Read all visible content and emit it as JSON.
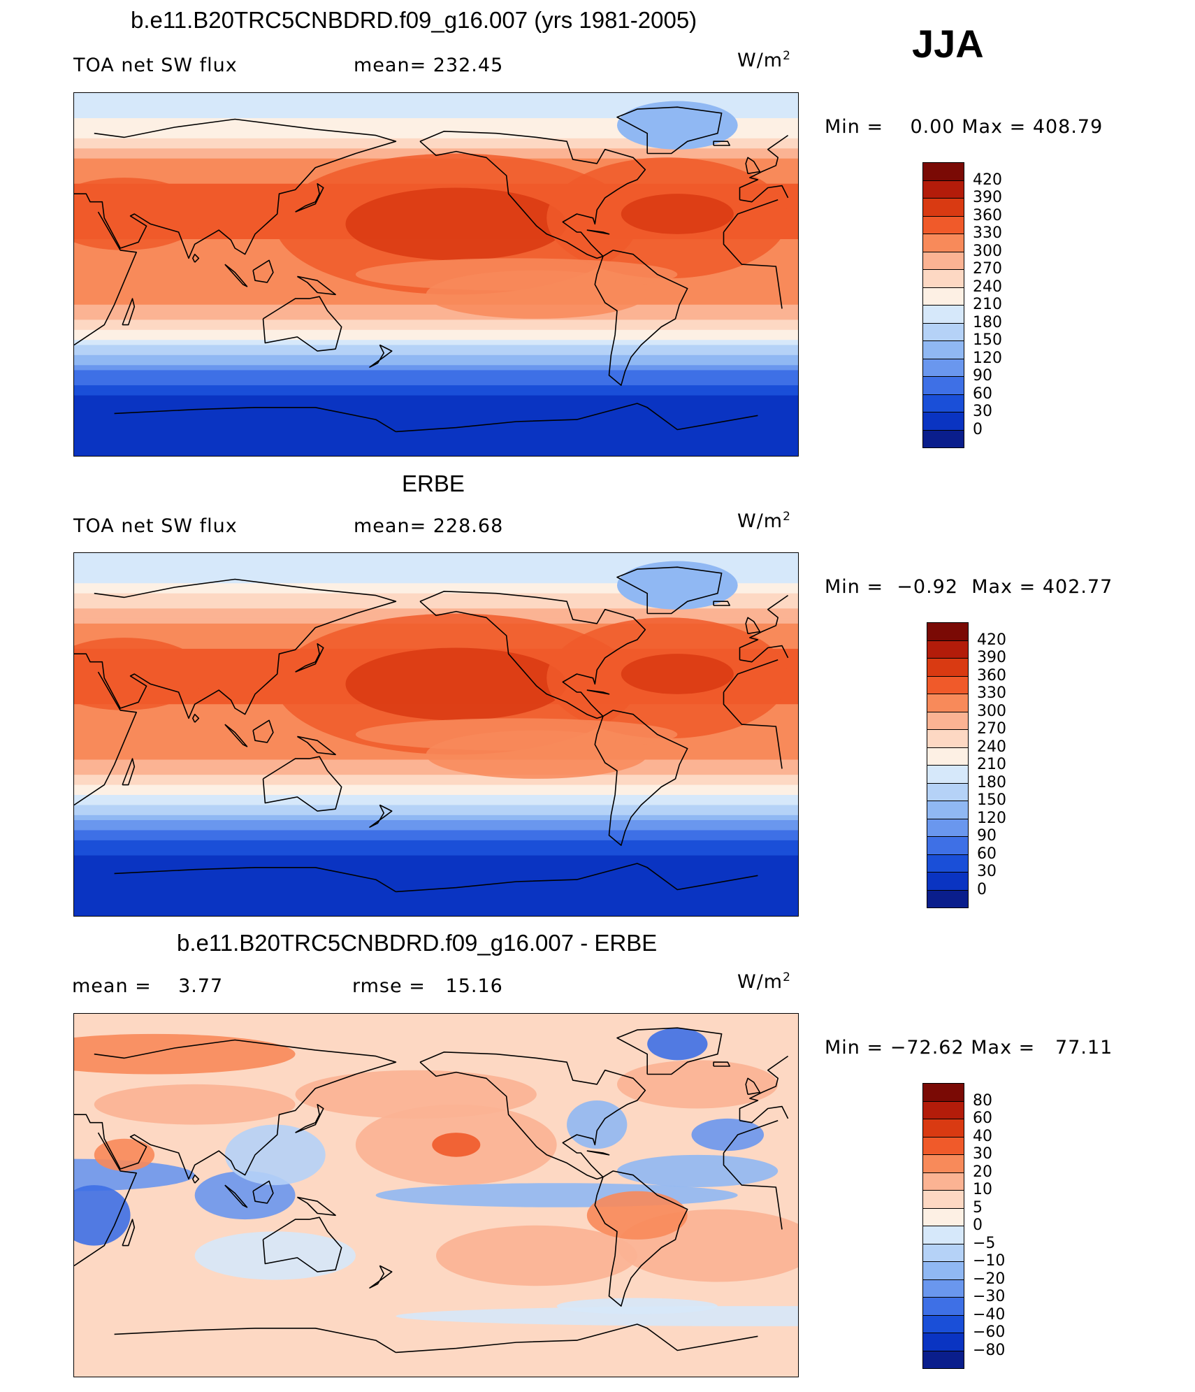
{
  "season": "JJA",
  "panels": [
    {
      "id": "model",
      "title": "b.e11.B20TRC5CNBDRD.f09_g16.007 (yrs 1981-2005)",
      "left_label": "TOA net SW flux",
      "stat_label": "mean= 232.45",
      "unit_base": "W/m",
      "unit_exp": "2",
      "min_label": "Min =",
      "min_value": "0.00",
      "max_label": "Max =",
      "max_value": "408.79"
    },
    {
      "id": "obs",
      "title": "ERBE",
      "left_label": "TOA net SW flux",
      "stat_label": "mean= 228.68",
      "unit_base": "W/m",
      "unit_exp": "2",
      "min_label": "Min =",
      "min_value": "−0.92",
      "max_label": "Max =",
      "max_value": "402.77"
    },
    {
      "id": "diff",
      "title": "b.e11.B20TRC5CNBDRD.f09_g16.007 - ERBE",
      "left_label": "mean =    3.77",
      "stat_label": "rmse =   15.16",
      "unit_base": "W/m",
      "unit_exp": "2",
      "min_label": "Min =",
      "min_value": "−72.62",
      "max_label": "Max =",
      "max_value": "77.11"
    }
  ],
  "chart_data": [
    {
      "type": "heatmap",
      "title": "b.e11.B20TRC5CNBDRD.f09_g16.007 (yrs 1981-2005)",
      "variable": "TOA net SW flux",
      "mean": 232.45,
      "min": 0.0,
      "max": 408.79,
      "colorbar_levels": [
        "420",
        "390",
        "360",
        "330",
        "300",
        "270",
        "240",
        "210",
        "180",
        "150",
        "120",
        "90",
        "60",
        "30",
        "0"
      ],
      "colors": [
        "#7a0a05",
        "#b31c0a",
        "#d93a12",
        "#f05a2a",
        "#f88a5a",
        "#fbb393",
        "#fdd8c3",
        "#fdf0e4",
        "#d6e8fa",
        "#b5d2f7",
        "#90b8f3",
        "#6a97ee",
        "#3e70e6",
        "#1a4fd8",
        "#0a34c2",
        "#0a1e8c"
      ],
      "zonal_profile": [
        {
          "lat": 80,
          "value": 200
        },
        {
          "lat": 70,
          "value": 230
        },
        {
          "lat": 60,
          "value": 290
        },
        {
          "lat": 45,
          "value": 330
        },
        {
          "lat": 30,
          "value": 350
        },
        {
          "lat": 20,
          "value": 345
        },
        {
          "lat": 10,
          "value": 300
        },
        {
          "lat": 0,
          "value": 310
        },
        {
          "lat": -10,
          "value": 320
        },
        {
          "lat": -20,
          "value": 280
        },
        {
          "lat": -30,
          "value": 220
        },
        {
          "lat": -40,
          "value": 150
        },
        {
          "lat": -50,
          "value": 80
        },
        {
          "lat": -60,
          "value": 30
        },
        {
          "lat": -75,
          "value": 5
        }
      ]
    },
    {
      "type": "heatmap",
      "title": "ERBE",
      "variable": "TOA net SW flux",
      "mean": 228.68,
      "min": -0.92,
      "max": 402.77,
      "colorbar_levels": [
        "420",
        "390",
        "360",
        "330",
        "300",
        "270",
        "240",
        "210",
        "180",
        "150",
        "120",
        "90",
        "60",
        "30",
        "0"
      ],
      "colors": [
        "#7a0a05",
        "#b31c0a",
        "#d93a12",
        "#f05a2a",
        "#f88a5a",
        "#fbb393",
        "#fdd8c3",
        "#fdf0e4",
        "#d6e8fa",
        "#b5d2f7",
        "#90b8f3",
        "#6a97ee",
        "#3e70e6",
        "#1a4fd8",
        "#0a34c2",
        "#0a1e8c"
      ],
      "zonal_profile": [
        {
          "lat": 80,
          "value": 190
        },
        {
          "lat": 70,
          "value": 240
        },
        {
          "lat": 60,
          "value": 285
        },
        {
          "lat": 45,
          "value": 325
        },
        {
          "lat": 30,
          "value": 345
        },
        {
          "lat": 20,
          "value": 350
        },
        {
          "lat": 10,
          "value": 305
        },
        {
          "lat": 0,
          "value": 300
        },
        {
          "lat": -10,
          "value": 310
        },
        {
          "lat": -20,
          "value": 275
        },
        {
          "lat": -30,
          "value": 215
        },
        {
          "lat": -40,
          "value": 145
        },
        {
          "lat": -50,
          "value": 75
        },
        {
          "lat": -60,
          "value": 25
        },
        {
          "lat": -75,
          "value": 5
        }
      ]
    },
    {
      "type": "heatmap",
      "title": "b.e11.B20TRC5CNBDRD.f09_g16.007 - ERBE",
      "variable": "difference",
      "mean": 3.77,
      "rmse": 15.16,
      "min": -72.62,
      "max": 77.11,
      "colorbar_levels": [
        "80",
        "60",
        "40",
        "30",
        "20",
        "10",
        "5",
        "0",
        "−5",
        "−10",
        "−20",
        "−30",
        "−40",
        "−60",
        "−80"
      ],
      "colors": [
        "#7a0a05",
        "#b31c0a",
        "#d93a12",
        "#f05a2a",
        "#f88a5a",
        "#fbb393",
        "#fdd8c3",
        "#fdf0e4",
        "#d6e8fa",
        "#b5d2f7",
        "#90b8f3",
        "#6a97ee",
        "#3e70e6",
        "#1a4fd8",
        "#0a34c2",
        "#0a1e8c"
      ]
    }
  ]
}
